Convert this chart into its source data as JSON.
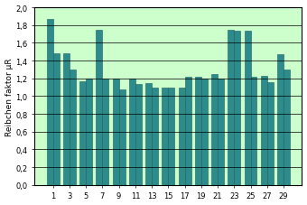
{
  "categories": [
    "1",
    "3",
    "5",
    "7",
    "9",
    "11",
    "13",
    "15",
    "17",
    "19",
    "21",
    "23",
    "25",
    "27",
    "29"
  ],
  "values_a": [
    1.87,
    1.48,
    1.17,
    1.75,
    1.2,
    1.2,
    1.15,
    1.1,
    1.1,
    1.22,
    1.25,
    1.75,
    1.74,
    1.23,
    1.47
  ],
  "values_b": [
    1.48,
    1.3,
    1.2,
    1.2,
    1.08,
    1.14,
    1.1,
    1.1,
    1.22,
    1.2,
    1.2,
    1.74,
    1.22,
    1.16,
    1.3
  ],
  "bar_color": "#2e8b8b",
  "bar_edge_color": "#1a5f5f",
  "plot_bg_color": "#ccffcc",
  "outer_bg_color": "#ffffff",
  "ylabel": "Reibchen faktor μR",
  "ylim": [
    0.0,
    2.0
  ],
  "yticks": [
    0.0,
    0.2,
    0.4,
    0.6,
    0.8,
    1.0,
    1.2,
    1.4,
    1.6,
    1.8,
    2.0
  ],
  "grid_color": "#000000",
  "ylabel_fontsize": 6.5,
  "tick_fontsize": 6.0
}
